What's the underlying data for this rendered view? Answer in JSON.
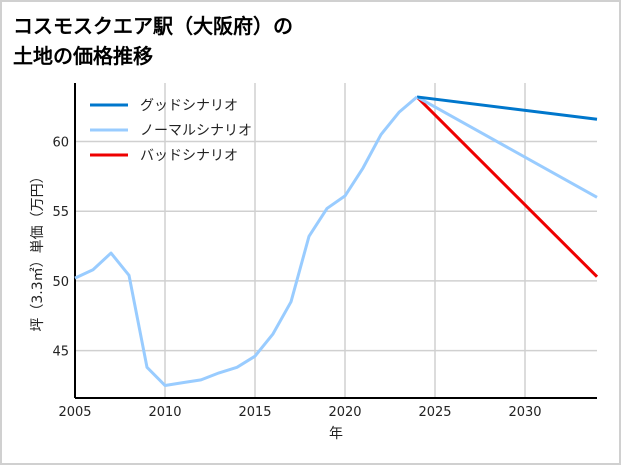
{
  "title_line1": "コスモスクエア駅（大阪府）の",
  "title_line2": "土地の価格推移",
  "chart_data": {
    "type": "line",
    "title": "コスモスクエア駅（大阪府）の土地の価格推移",
    "xlabel": "年",
    "ylabel": "坪（3.3㎡）単価（万円）",
    "xlim": [
      2005,
      2034
    ],
    "ylim": [
      41.6,
      64.2
    ],
    "xticks": [
      2005,
      2010,
      2015,
      2020,
      2025,
      2030
    ],
    "yticks": [
      45,
      50,
      55,
      60
    ],
    "grid": true,
    "legend_position": "top-left",
    "history": {
      "x": [
        2005,
        2006,
        2007,
        2008,
        2009,
        2010,
        2011,
        2012,
        2013,
        2014,
        2015,
        2016,
        2017,
        2018,
        2019,
        2020,
        2021,
        2022,
        2023,
        2024
      ],
      "y": [
        50.2,
        50.8,
        52.0,
        50.4,
        43.8,
        42.5,
        42.7,
        42.9,
        43.4,
        43.8,
        44.6,
        46.2,
        48.5,
        53.2,
        55.2,
        56.1,
        58.1,
        60.5,
        62.1,
        63.2
      ],
      "color": "#99ccff"
    },
    "series": [
      {
        "name": "グッドシナリオ",
        "color": "#0077cc",
        "x": [
          2024,
          2034
        ],
        "y": [
          63.2,
          61.6
        ]
      },
      {
        "name": "ノーマルシナリオ",
        "color": "#99ccff",
        "x": [
          2024,
          2034
        ],
        "y": [
          63.2,
          56.0
        ]
      },
      {
        "name": "バッドシナリオ",
        "color": "#ee0000",
        "x": [
          2024,
          2034
        ],
        "y": [
          63.2,
          50.3
        ]
      }
    ]
  }
}
